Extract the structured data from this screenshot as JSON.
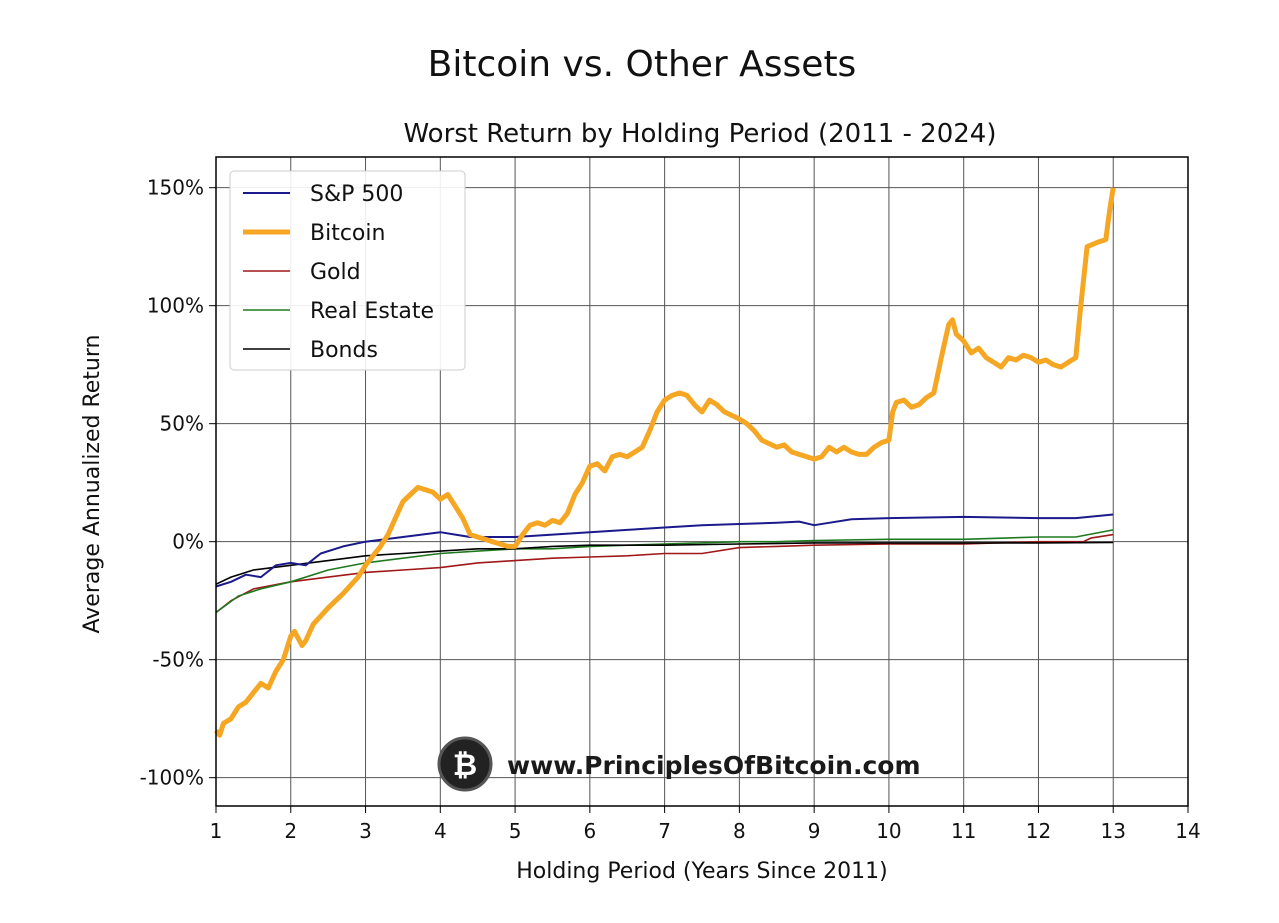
{
  "chart_data": {
    "type": "line",
    "title": "Bitcoin vs. Other Assets",
    "subtitle": "Worst Return by Holding Period (2011 - 2024)",
    "xlabel": "Holding Period (Years Since 2011)",
    "ylabel": "Average Annualized Return",
    "xlim": [
      1,
      14
    ],
    "ylim": [
      -112,
      163
    ],
    "xticks": [
      1,
      2,
      3,
      4,
      5,
      6,
      7,
      8,
      9,
      10,
      11,
      12,
      13,
      14
    ],
    "yticks": [
      -100,
      -50,
      0,
      50,
      100,
      150
    ],
    "ytick_labels": [
      "-100%",
      "-50%",
      "0%",
      "50%",
      "100%",
      "150%"
    ],
    "grid": true,
    "legend_position": "top-left",
    "watermark": "www.PrinciplesOfBitcoin.com",
    "series": [
      {
        "name": "S&P 500",
        "color": "#1a1a8c",
        "width": 2,
        "x": [
          1,
          1.2,
          1.4,
          1.6,
          1.8,
          2,
          2.2,
          2.4,
          2.7,
          3,
          3.5,
          4,
          4.2,
          4.4,
          4.6,
          5,
          5.5,
          6,
          6.5,
          7,
          7.5,
          8,
          8.5,
          8.8,
          9,
          9.2,
          9.5,
          10,
          11,
          12,
          12.5,
          13
        ],
        "y": [
          -19,
          -17,
          -14,
          -15,
          -10,
          -9,
          -10,
          -5,
          -2,
          0,
          2,
          4,
          3,
          2,
          2,
          2,
          3,
          4,
          5,
          6,
          7,
          7.5,
          8,
          8.5,
          7,
          8,
          9.5,
          10,
          10.5,
          10,
          10,
          11.5
        ]
      },
      {
        "name": "Bitcoin",
        "color": "#f5a623",
        "width": 5,
        "x": [
          1,
          1.05,
          1.1,
          1.2,
          1.3,
          1.4,
          1.5,
          1.6,
          1.7,
          1.8,
          1.9,
          2,
          2.05,
          2.15,
          2.2,
          2.3,
          2.5,
          2.7,
          2.9,
          3,
          3.1,
          3.2,
          3.3,
          3.4,
          3.5,
          3.6,
          3.7,
          3.8,
          3.9,
          4,
          4.1,
          4.2,
          4.3,
          4.4,
          4.5,
          4.6,
          4.7,
          4.8,
          4.9,
          5,
          5.1,
          5.2,
          5.3,
          5.4,
          5.5,
          5.6,
          5.7,
          5.8,
          5.9,
          6,
          6.1,
          6.2,
          6.3,
          6.4,
          6.5,
          6.6,
          6.7,
          6.8,
          6.9,
          7,
          7.1,
          7.2,
          7.3,
          7.4,
          7.5,
          7.6,
          7.7,
          7.8,
          8,
          8.1,
          8.2,
          8.3,
          8.5,
          8.6,
          8.7,
          8.9,
          9,
          9.1,
          9.2,
          9.3,
          9.4,
          9.5,
          9.6,
          9.7,
          9.8,
          9.9,
          10,
          10.05,
          10.1,
          10.2,
          10.3,
          10.4,
          10.5,
          10.6,
          10.7,
          10.8,
          10.85,
          10.9,
          11,
          11.1,
          11.2,
          11.3,
          11.4,
          11.5,
          11.6,
          11.7,
          11.8,
          11.9,
          12,
          12.1,
          12.2,
          12.3,
          12.4,
          12.5,
          12.55,
          12.6,
          12.65,
          12.8,
          12.9,
          12.95,
          13
        ],
        "y": [
          -80,
          -82,
          -77,
          -75,
          -70,
          -68,
          -64,
          -60,
          -62,
          -55,
          -50,
          -40,
          -38,
          -44,
          -42,
          -35,
          -28,
          -22,
          -15,
          -10,
          -6,
          -2,
          3,
          10,
          17,
          20,
          23,
          22,
          21,
          18,
          20,
          15,
          10,
          3,
          2,
          1,
          0,
          -1,
          -2,
          -2,
          3,
          7,
          8,
          7,
          9,
          8,
          12,
          20,
          25,
          32,
          33,
          30,
          36,
          37,
          36,
          38,
          40,
          47,
          55,
          60,
          62,
          63,
          62,
          58,
          55,
          60,
          58,
          55,
          52,
          50,
          47,
          43,
          40,
          41,
          38,
          36,
          35,
          36,
          40,
          38,
          40,
          38,
          37,
          37,
          40,
          42,
          43,
          55,
          59,
          60,
          57,
          58,
          61,
          63,
          78,
          92,
          94,
          88,
          85,
          80,
          82,
          78,
          76,
          74,
          78,
          77,
          79,
          78,
          76,
          77,
          75,
          74,
          76,
          78,
          95,
          110,
          125,
          127,
          128,
          140,
          150
        ]
      },
      {
        "name": "Gold",
        "color": "#a01818",
        "width": 1.6,
        "x": [
          1,
          1.2,
          1.5,
          2,
          2.5,
          3,
          3.5,
          4,
          4.5,
          5,
          5.5,
          6,
          6.5,
          7,
          7.5,
          8,
          8.5,
          9,
          10,
          11,
          12,
          12.6,
          12.7,
          13
        ],
        "y": [
          -30,
          -25,
          -20,
          -17,
          -15,
          -13,
          -12,
          -11,
          -9,
          -8,
          -7,
          -6.5,
          -6,
          -5,
          -5,
          -2.5,
          -2,
          -1.5,
          -1,
          -1,
          0,
          0,
          1.5,
          3
        ]
      },
      {
        "name": "Real Estate",
        "color": "#1f7a1f",
        "width": 1.6,
        "x": [
          1,
          1.3,
          1.6,
          2,
          2.5,
          3,
          3.5,
          4,
          4.5,
          5,
          5.5,
          6,
          7,
          8,
          8.5,
          9,
          10,
          11,
          12,
          12.5,
          13
        ],
        "y": [
          -30,
          -23,
          -20,
          -17,
          -12,
          -9,
          -7,
          -5,
          -4,
          -3,
          -3,
          -2,
          -1,
          0,
          0,
          0.5,
          1,
          1,
          2,
          2,
          5
        ]
      },
      {
        "name": "Bonds",
        "color": "#000000",
        "width": 1.6,
        "x": [
          1,
          1.2,
          1.5,
          2,
          2.5,
          3,
          3.5,
          4,
          4.5,
          5,
          5.5,
          6,
          7,
          8,
          9,
          10,
          11,
          12,
          13
        ],
        "y": [
          -18,
          -15,
          -12,
          -10,
          -8,
          -6,
          -5,
          -4,
          -3,
          -3,
          -2,
          -1.5,
          -1.5,
          -1,
          -0.5,
          -0.5,
          -0.5,
          -0.5,
          -0.3
        ]
      }
    ]
  }
}
